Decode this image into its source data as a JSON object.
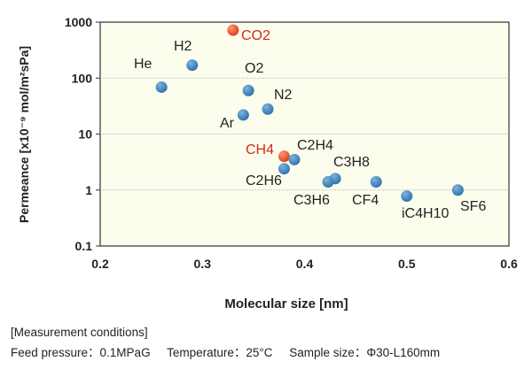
{
  "chart_data": {
    "type": "scatter",
    "xlabel": "Molecular size [nm]",
    "ylabel": "Permeance  [x10⁻⁹ mol/m²sPa]",
    "xlim": [
      0.2,
      0.6
    ],
    "ylim": [
      0.1,
      1000
    ],
    "yscale": "log",
    "xticks": [
      "0.2",
      "0.3",
      "0.4",
      "0.5",
      "0.6"
    ],
    "yticks": [
      "0.1",
      "1",
      "10",
      "100",
      "1000"
    ],
    "grid": "horizontal",
    "plot_background": "#fdfdee",
    "colors": {
      "default": "#2f75b0",
      "highlight": "#e0401a",
      "highlight_label": "#d02a1a"
    },
    "points": [
      {
        "label": "CO2",
        "x": 0.33,
        "y": 720,
        "highlight": true
      },
      {
        "label": "H2",
        "x": 0.29,
        "y": 170,
        "highlight": false
      },
      {
        "label": "He",
        "x": 0.26,
        "y": 69,
        "highlight": false
      },
      {
        "label": "O2",
        "x": 0.345,
        "y": 60,
        "highlight": false
      },
      {
        "label": "N2",
        "x": 0.364,
        "y": 28,
        "highlight": false
      },
      {
        "label": "Ar",
        "x": 0.34,
        "y": 22,
        "highlight": false
      },
      {
        "label": "CH4",
        "x": 0.38,
        "y": 4.0,
        "highlight": true
      },
      {
        "label": "C2H4",
        "x": 0.39,
        "y": 3.5,
        "highlight": false
      },
      {
        "label": "C2H6",
        "x": 0.38,
        "y": 2.4,
        "highlight": false
      },
      {
        "label": "C3H8",
        "x": 0.43,
        "y": 1.6,
        "highlight": false
      },
      {
        "label": "C3H6",
        "x": 0.423,
        "y": 1.4,
        "highlight": false
      },
      {
        "label": "CF4",
        "x": 0.47,
        "y": 1.4,
        "highlight": false
      },
      {
        "label": "iC4H10",
        "x": 0.5,
        "y": 0.78,
        "highlight": false
      },
      {
        "label": "SF6",
        "x": 0.55,
        "y": 1.0,
        "highlight": false
      }
    ]
  },
  "footer": {
    "heading": "[Measurement conditions]",
    "conditions": "Feed pressure：0.1MPaG     Temperature：25°C     Sample size：Φ30-L160mm"
  }
}
